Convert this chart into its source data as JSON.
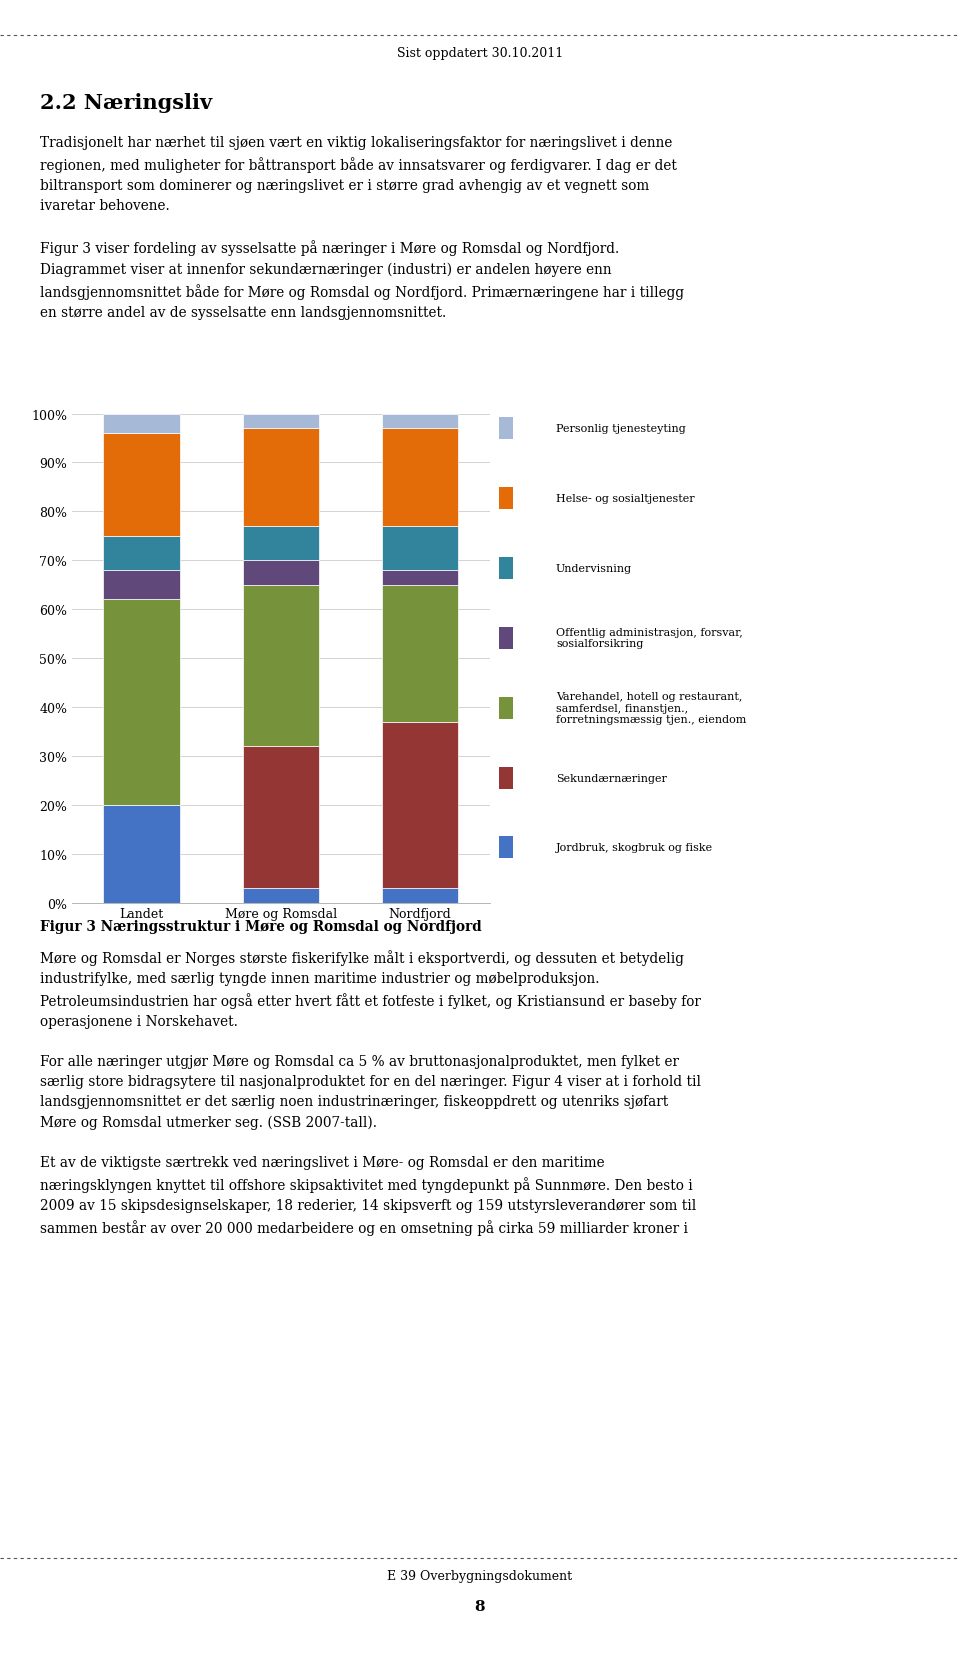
{
  "categories": [
    "Landet",
    "Møre og Romsdal",
    "Nordfjord"
  ],
  "series": [
    {
      "label": "Jordbruk, skogbruk og fiske",
      "color": "#4472C4",
      "values": [
        20.0,
        3.0,
        3.0
      ]
    },
    {
      "label": "Sekundærnæringer",
      "color": "#943634",
      "values": [
        0.0,
        29.0,
        34.0
      ]
    },
    {
      "label": "Varehandel, hotell og restaurant,\nsamferdsel, finanstjen.,\nforretningsmæssig tjen., eiendom",
      "color": "#76933C",
      "values": [
        42.0,
        33.0,
        28.0
      ]
    },
    {
      "label": "Offentlig administrasjon, forsvar,\nsosialforsikring",
      "color": "#60497A",
      "values": [
        6.0,
        5.0,
        3.0
      ]
    },
    {
      "label": "Undervisning",
      "color": "#31849B",
      "values": [
        7.0,
        7.0,
        9.0
      ]
    },
    {
      "label": "Helse- og sosialtjenester",
      "color": "#E36C09",
      "values": [
        21.0,
        20.0,
        20.0
      ]
    },
    {
      "label": "Personlig tjenesteyting",
      "color": "#A6B9D7",
      "values": [
        4.0,
        3.0,
        3.0
      ]
    }
  ],
  "ytick_labels": [
    "0%",
    "10%",
    "20%",
    "30%",
    "40%",
    "50%",
    "60%",
    "70%",
    "80%",
    "90%",
    "100%"
  ],
  "figure_title": "Sist oppdatert 30.10.2011",
  "chart_caption": "Figur 3 Næringsstruktur i Møre og Romsdal og Nordfjord",
  "footer": "E 39 Overbygningsdokument",
  "page_number": "8",
  "body_text_1": "2.2 Næringsliv",
  "body_text_2": "Tradisjonelt har nærhet til sjøen vært en viktig lokaliseringsfaktor for næringslivet i denne\nregionen, med muligheter for båttransport både av innsatsvarer og ferdigvarer. I dag er det\nbiltransport som dominerer og næringslivet er i større grad avhengig av et vegnett som\nivaretar behovene.\n\nFigur 3 viser fordeling av sysselsatte på næringer i Møre og Romsdal og Nordfjord.\nDiagrammet viser at innenfor sekundærnæringer (industri) er andelen høyere enn\nlandsgjennomsnittet både for Møre og Romsdal og Nordfjord. Primærnæringene har i tillegg\nen større andel av de sysselsatte enn landsgjennomsnittet.",
  "body_text_3": "Møre og Romsdal er Norges største fiskerifylke målt i eksportverdi, og dessuten et betydelig\nindustrifylke, med særlig tyngde innen maritime industrier og møbelproduksjon.\nPetroleumsindustrien har også etter hvert fått et fotfeste i fylket, og Kristiansund er baseby for\noperasjonene i Norskehavet.\n\nFor alle næringer utgjør Møre og Romsdal ca 5 % av bruttonasjonalproduktet, men fylket er\nsærlig store bidragsytere til nasjonalproduktet for en del næringer. Figur 4 viser at i forhold til\nlandsgjennomsnittet er det særlig noen industrinæringer, fiskeoppdrett og utenriks sjøfart\nMøre og Romsdal utmerker seg. (SSB 2007-tall).\n\nEt av de viktigste særtrekk ved næringslivet i Møre- og Romsdal er den maritime\nnæringsklyngen knyttet til offshore skipsaktivitet med tyngdepunkt på Sunnmøre. Den besto i\n2009 av 15 skipsdesignselskaper, 18 rederier, 14 skipsverft og 159 utstyrsleverandører som til\nsammen består av over 20 000 medarbeidere og en omsetning på cirka 59 milliarder kroner i"
}
